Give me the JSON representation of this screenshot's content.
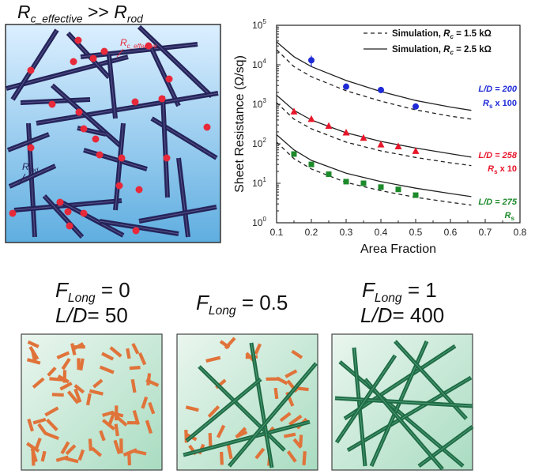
{
  "top_left": {
    "title": {
      "r1": "R",
      "r1_sub": "c_effective",
      "op": ">>",
      "r2": "R",
      "r2_sub": "rod"
    },
    "label_rc_effective": {
      "main": "R",
      "sub": "c_effective"
    },
    "label_rrod": {
      "main": "R",
      "sub": "rod"
    },
    "colors": {
      "background_top": "#dcefff",
      "background_bottom": "#5faee0",
      "rod": "#25245a",
      "junction": "#e8293a",
      "label_rc": "#e8293a"
    }
  },
  "chart_data": {
    "type": "scatter",
    "xlabel": "Area Fraction",
    "ylabel": "Sheet Resistance (Ω/sq)",
    "xlim": [
      0.1,
      0.8
    ],
    "ylim": [
      1,
      100000
    ],
    "yscale": "log",
    "xticks": [
      "0.1",
      "0.2",
      "0.3",
      "0.4",
      "0.5",
      "0.6",
      "0.7",
      "0.8"
    ],
    "yticks": [
      {
        "base": "10",
        "exp": "0"
      },
      {
        "base": "10",
        "exp": "1"
      },
      {
        "base": "10",
        "exp": "2"
      },
      {
        "base": "10",
        "exp": "3"
      },
      {
        "base": "10",
        "exp": "4"
      },
      {
        "base": "10",
        "exp": "5"
      }
    ],
    "legend": [
      {
        "style": "dashed",
        "text": "Simulation, ",
        "var": "R",
        "sub": "c",
        "value": " = 1.5 kΩ"
      },
      {
        "style": "solid",
        "text": "Simulation, ",
        "var": "R",
        "sub": "c",
        "value": " = 2.5 kΩ"
      }
    ],
    "series": [
      {
        "label_ld": "L/D = 200",
        "label_scale_var": "R",
        "label_scale_sub": "s",
        "label_scale_text": " x 100",
        "color": "#1f2bd6",
        "marker": "circle",
        "x": [
          0.2,
          0.3,
          0.4,
          0.5
        ],
        "y": [
          13000,
          2800,
          2300,
          880
        ],
        "yerr": [
          4000,
          300,
          400,
          100
        ],
        "sim_solid": {
          "x": [
            0.1,
            0.15,
            0.2,
            0.3,
            0.4,
            0.5,
            0.6,
            0.66
          ],
          "y": [
            38000,
            16000,
            9000,
            4000,
            2100,
            1250,
            850,
            700
          ]
        },
        "sim_dashed": {
          "x": [
            0.1,
            0.15,
            0.2,
            0.3,
            0.4,
            0.5,
            0.6,
            0.66
          ],
          "y": [
            24000,
            9000,
            5000,
            2200,
            1200,
            720,
            500,
            420
          ]
        }
      },
      {
        "label_ld": "L/D = 258",
        "label_scale_var": "R",
        "label_scale_sub": "s",
        "label_scale_text": " x 10",
        "color": "#e8162a",
        "marker": "triangle",
        "x": [
          0.15,
          0.2,
          0.25,
          0.3,
          0.35,
          0.4,
          0.45,
          0.5
        ],
        "y": [
          650,
          420,
          280,
          190,
          140,
          95,
          85,
          65
        ],
        "yerr": [
          100,
          50,
          0,
          0,
          0,
          0,
          0,
          0
        ],
        "sim_solid": {
          "x": [
            0.1,
            0.15,
            0.2,
            0.3,
            0.4,
            0.5,
            0.6,
            0.66
          ],
          "y": [
            1700,
            700,
            400,
            190,
            115,
            78,
            56,
            46
          ]
        },
        "sim_dashed": {
          "x": [
            0.1,
            0.15,
            0.2,
            0.3,
            0.4,
            0.5,
            0.6,
            0.66
          ],
          "y": [
            1100,
            420,
            240,
            110,
            66,
            45,
            33,
            28
          ]
        }
      },
      {
        "label_ld": "L/D = 275",
        "label_scale_var": "R",
        "label_scale_sub": "s",
        "label_scale_text": "",
        "color": "#1d8a2b",
        "marker": "square",
        "x": [
          0.15,
          0.2,
          0.25,
          0.3,
          0.35,
          0.4,
          0.45,
          0.5
        ],
        "y": [
          55,
          30,
          17,
          11,
          10,
          8,
          7,
          5
        ],
        "yerr": [
          0,
          0,
          0,
          0,
          0,
          0,
          0,
          0
        ],
        "sim_solid": {
          "x": [
            0.1,
            0.15,
            0.2,
            0.3,
            0.4,
            0.5,
            0.6,
            0.66
          ],
          "y": [
            170,
            70,
            38,
            18,
            11,
            7.5,
            5.5,
            4.6
          ]
        },
        "sim_dashed": {
          "x": [
            0.1,
            0.15,
            0.2,
            0.3,
            0.4,
            0.5,
            0.6,
            0.66
          ],
          "y": [
            110,
            42,
            23,
            10.5,
            6.5,
            4.4,
            3.3,
            2.8
          ]
        }
      }
    ]
  },
  "bottom": {
    "panels": [
      {
        "line1": {
          "var": "F",
          "sub": "Long",
          "value": " = 0"
        },
        "line2": {
          "text": "L/D",
          "value": "= 50"
        }
      },
      {
        "line1": {
          "var": "F",
          "sub": "Long",
          "value": " = 0.5"
        },
        "line2": null
      },
      {
        "line1": {
          "var": "F",
          "sub": "Long",
          "value": " = 1"
        },
        "line2": {
          "text": "L/D",
          "value": "= 400"
        }
      }
    ],
    "colors": {
      "background_top": "#eaf6ef",
      "background_bottom": "#a9dcc1",
      "short_rod": "#e0733a",
      "long_rod": "#1f6b45"
    }
  }
}
